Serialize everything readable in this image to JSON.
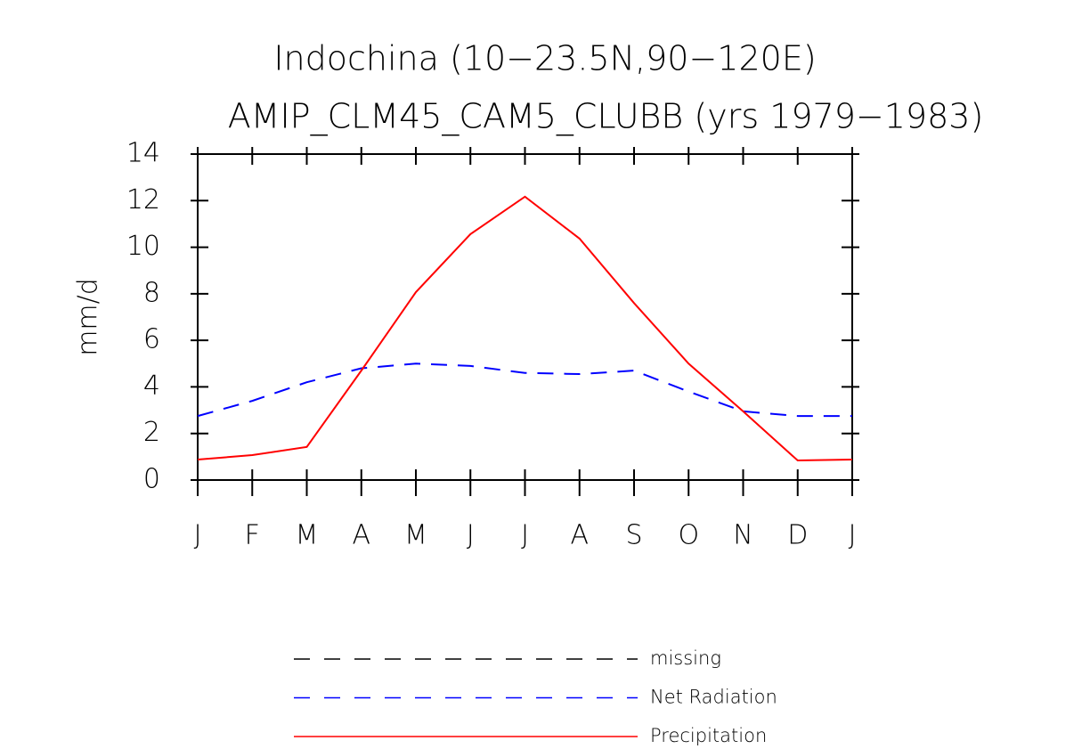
{
  "chart_data": {
    "type": "line",
    "title": "Indochina (10−23.5N,90−120E)",
    "subtitle": "AMIP_CLM45_CAM5_CLUBB (yrs 1979−1983)",
    "y_label": "mm/d",
    "categories": [
      "J",
      "F",
      "M",
      "A",
      "M",
      "J",
      "J",
      "A",
      "S",
      "O",
      "N",
      "D",
      "J"
    ],
    "series": [
      {
        "name": "missing",
        "color": "#000000",
        "dash": true,
        "values": [
          null,
          null,
          null,
          null,
          null,
          null,
          null,
          null,
          null,
          null,
          null,
          null,
          null
        ]
      },
      {
        "name": "Net Radiation",
        "color": "#0000ff",
        "dash": true,
        "values": [
          2.75,
          3.4,
          4.2,
          4.8,
          5.0,
          4.9,
          4.6,
          4.55,
          4.7,
          3.8,
          2.95,
          2.75,
          2.75
        ]
      },
      {
        "name": "Precipitation",
        "color": "#ff0000",
        "dash": false,
        "values": [
          0.88,
          1.07,
          1.42,
          4.7,
          8.07,
          10.56,
          12.17,
          10.37,
          7.6,
          5.0,
          2.95,
          0.84,
          0.88
        ]
      }
    ],
    "ylim": [
      0,
      14
    ],
    "yticks": [
      0,
      2,
      4,
      6,
      8,
      10,
      12,
      14
    ],
    "grid": false
  }
}
